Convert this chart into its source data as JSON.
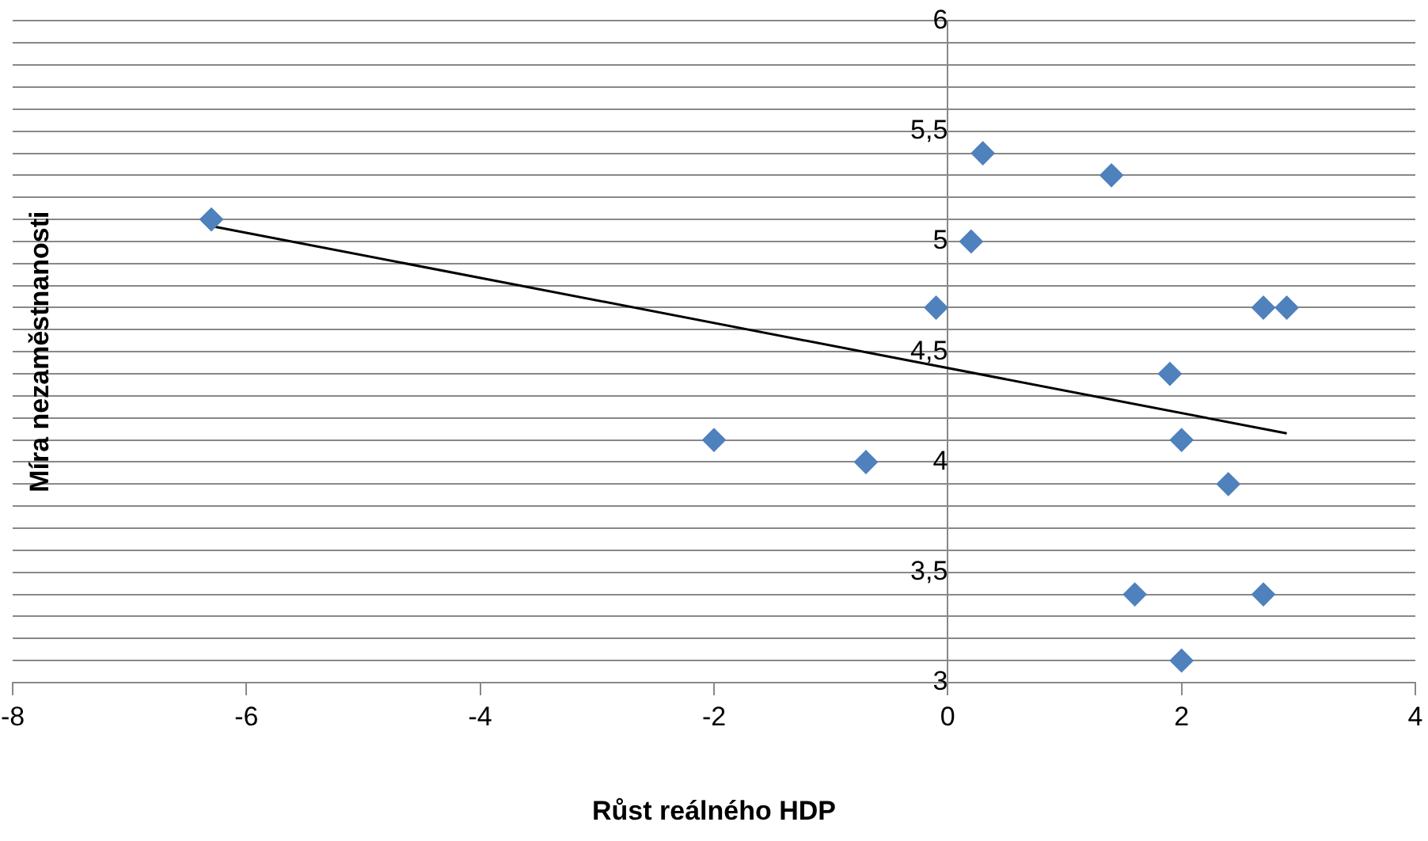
{
  "chart_data": {
    "type": "scatter",
    "xlabel": "Růst reálného HDP",
    "ylabel": "Míra nezaměstnanosti",
    "xlim": [
      -8,
      4
    ],
    "xticks": [
      -8,
      -6,
      -4,
      -2,
      0,
      2,
      4
    ],
    "ylim": [
      3,
      6
    ],
    "yticks": [
      {
        "value": 3,
        "label": "3"
      },
      {
        "value": 3.1,
        "label": null
      },
      {
        "value": 3.2,
        "label": null
      },
      {
        "value": 3.3,
        "label": null
      },
      {
        "value": 3.4,
        "label": null
      },
      {
        "value": 3.5,
        "label": "3,5"
      },
      {
        "value": 3.6,
        "label": null
      },
      {
        "value": 3.7,
        "label": null
      },
      {
        "value": 3.8,
        "label": null
      },
      {
        "value": 3.9,
        "label": null
      },
      {
        "value": 4,
        "label": "4"
      },
      {
        "value": 4.1,
        "label": null
      },
      {
        "value": 4.2,
        "label": null
      },
      {
        "value": 4.3,
        "label": null
      },
      {
        "value": 4.4,
        "label": null
      },
      {
        "value": 4.5,
        "label": "4,5"
      },
      {
        "value": 4.6,
        "label": null
      },
      {
        "value": 4.7,
        "label": null
      },
      {
        "value": 4.8,
        "label": null
      },
      {
        "value": 4.9,
        "label": null
      },
      {
        "value": 5,
        "label": "5"
      },
      {
        "value": 5.1,
        "label": null
      },
      {
        "value": 5.2,
        "label": null
      },
      {
        "value": 5.3,
        "label": null
      },
      {
        "value": 5.4,
        "label": null
      },
      {
        "value": 5.5,
        "label": "5,5"
      },
      {
        "value": 5.6,
        "label": null
      },
      {
        "value": 5.7,
        "label": null
      },
      {
        "value": 5.8,
        "label": null
      },
      {
        "value": 5.9,
        "label": null
      },
      {
        "value": 6,
        "label": "6"
      }
    ],
    "grid": "y",
    "legend": false,
    "marker": "diamond",
    "series": [
      {
        "type": "scatter",
        "color": "#4f81bd",
        "x": [
          -6.3,
          -2.0,
          -0.7,
          -0.1,
          0.2,
          0.3,
          1.4,
          1.9,
          2.0,
          2.4,
          2.7,
          2.9,
          1.6,
          2.7,
          2.0
        ],
        "values": [
          5.1,
          4.1,
          4.0,
          4.7,
          5.0,
          5.4,
          5.3,
          4.4,
          4.1,
          3.9,
          4.7,
          4.7,
          3.4,
          3.4,
          3.1
        ]
      },
      {
        "type": "line",
        "color": "#000000",
        "marker": "none",
        "x": [
          -6.3,
          2.9
        ],
        "values": [
          5.07,
          4.13
        ]
      }
    ]
  }
}
